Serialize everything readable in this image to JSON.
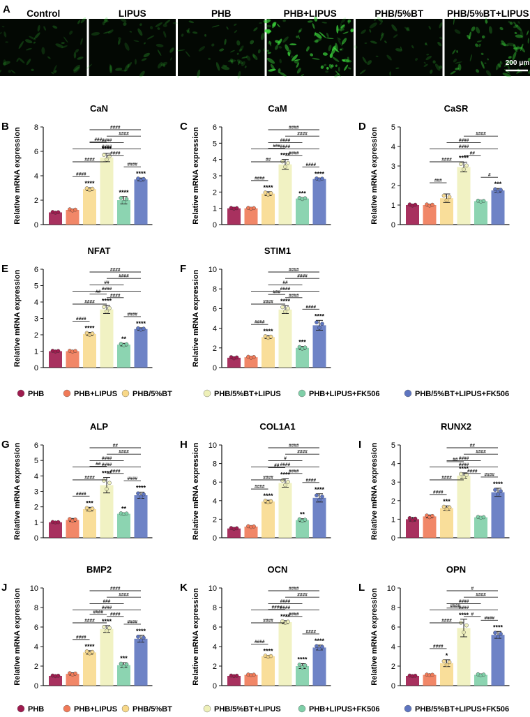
{
  "panel_a": {
    "letter": "A",
    "images": [
      {
        "label": "Control",
        "intensity": 0.08
      },
      {
        "label": "LIPUS",
        "intensity": 0.1
      },
      {
        "label": "PHB",
        "intensity": 0.13
      },
      {
        "label": "PHB+LIPUS",
        "intensity": 0.55
      },
      {
        "label": "PHB/5%BT",
        "intensity": 0.09
      },
      {
        "label": "PHB/5%BT+LIPUS",
        "intensity": 0.3
      }
    ],
    "scale_bar": "200 μm"
  },
  "ylabel": "Relative mRNA expression",
  "legend": {
    "groups": [
      "PHB",
      "PHB+LIPUS",
      "PHB/5%BT",
      "PHB/5%BT+LIPUS",
      "PHB+LIPUS+FK506",
      "PHB/5%BT+LIPUS+FK506"
    ],
    "colors": [
      "#9e1b4e",
      "#f07a58",
      "#f8d888",
      "#eef0b8",
      "#7fcfa8",
      "#5e75c0"
    ]
  },
  "chart_data": [
    {
      "letter": "B",
      "type": "bar",
      "title": "CaN",
      "ylim": [
        0,
        8
      ],
      "ticks": [
        0,
        2,
        4,
        6,
        8
      ],
      "values": [
        1.0,
        1.2,
        2.9,
        5.5,
        2.0,
        3.7
      ],
      "errors": [
        0.05,
        0.08,
        0.12,
        0.35,
        0.3,
        0.12
      ],
      "stars": [
        "",
        "",
        "****",
        "****",
        "****",
        "****"
      ],
      "brackets": [
        "####",
        "####",
        "####",
        "####",
        "####",
        "####",
        "###",
        "####",
        "####"
      ]
    },
    {
      "letter": "C",
      "type": "bar",
      "title": "CaM",
      "ylim": [
        0,
        6
      ],
      "ticks": [
        0,
        1,
        2,
        3,
        4,
        5,
        6
      ],
      "values": [
        1.0,
        1.0,
        1.9,
        3.7,
        1.6,
        2.8
      ],
      "errors": [
        0.04,
        0.05,
        0.12,
        0.3,
        0.06,
        0.06
      ],
      "stars": [
        "",
        "",
        "****",
        "****",
        "***",
        "****"
      ],
      "brackets": [
        "####",
        "####",
        "####",
        "####",
        "####",
        "##",
        "###",
        "####",
        "####"
      ]
    },
    {
      "letter": "D",
      "type": "bar",
      "title": "CaSR",
      "ylim": [
        0,
        5
      ],
      "ticks": [
        0,
        1,
        2,
        3,
        4,
        5
      ],
      "values": [
        1.0,
        1.0,
        1.35,
        2.95,
        1.2,
        1.75
      ],
      "errors": [
        0.05,
        0.05,
        0.22,
        0.25,
        0.04,
        0.1
      ],
      "stars": [
        "",
        "",
        "",
        "****",
        "",
        "***"
      ],
      "brackets": [
        "",
        "####",
        "####",
        "####",
        "##",
        "####",
        "#",
        "###"
      ]
    },
    {
      "letter": "E",
      "type": "bar",
      "title": "NFAT",
      "ylim": [
        0,
        6
      ],
      "ticks": [
        0,
        1,
        2,
        3,
        4,
        5,
        6
      ],
      "values": [
        1.0,
        1.0,
        2.05,
        3.55,
        1.4,
        2.35
      ],
      "errors": [
        0.04,
        0.04,
        0.1,
        0.25,
        0.08,
        0.08
      ],
      "stars": [
        "",
        "",
        "****",
        "****",
        "**",
        "****"
      ],
      "brackets": [
        "####",
        "####",
        "##",
        "####",
        "####",
        "####",
        "##",
        "####",
        "####"
      ]
    },
    {
      "letter": "F",
      "type": "bar",
      "title": "STIM1",
      "ylim": [
        0,
        10
      ],
      "ticks": [
        0,
        2,
        4,
        6,
        8,
        10
      ],
      "values": [
        1.0,
        1.05,
        3.1,
        5.9,
        2.0,
        4.3
      ],
      "errors": [
        0.1,
        0.08,
        0.15,
        0.4,
        0.15,
        0.5
      ],
      "stars": [
        "",
        "",
        "****",
        "****",
        "***",
        "****"
      ],
      "brackets": [
        "####",
        "####",
        "##",
        "####",
        "####",
        "####",
        "###",
        "####",
        "####"
      ]
    },
    {
      "letter": "G",
      "type": "bar",
      "title": "ALP",
      "ylim": [
        0,
        6
      ],
      "ticks": [
        0,
        1,
        2,
        3,
        4,
        5,
        6
      ],
      "values": [
        1.0,
        1.15,
        1.85,
        3.4,
        1.55,
        2.75
      ],
      "errors": [
        0.03,
        0.1,
        0.12,
        0.5,
        0.05,
        0.2
      ],
      "stars": [
        "",
        "",
        "***",
        "****",
        "**",
        "****"
      ],
      "brackets": [
        "##",
        "####",
        "####",
        "####",
        "####",
        "####",
        "##",
        "####",
        "####"
      ]
    },
    {
      "letter": "H",
      "type": "bar",
      "title": "COL1A1",
      "ylim": [
        0,
        10
      ],
      "ticks": [
        0,
        2,
        4,
        6,
        8,
        10
      ],
      "values": [
        1.0,
        1.2,
        3.9,
        5.9,
        1.9,
        4.3
      ],
      "errors": [
        0.08,
        0.08,
        0.15,
        0.45,
        0.15,
        0.45
      ],
      "stars": [
        "",
        "",
        "****",
        "****",
        "**",
        "****"
      ],
      "brackets": [
        "####",
        "####",
        "#",
        "####",
        "####",
        "####",
        "##",
        "####",
        "####"
      ]
    },
    {
      "letter": "I",
      "type": "bar",
      "title": "RUNX2",
      "ylim": [
        0,
        5
      ],
      "ticks": [
        0,
        1,
        2,
        3,
        4,
        5
      ],
      "values": [
        1.0,
        1.15,
        1.6,
        3.35,
        1.1,
        2.45
      ],
      "errors": [
        0.1,
        0.08,
        0.12,
        0.15,
        0.04,
        0.22
      ],
      "stars": [
        "",
        "",
        "***",
        "****",
        "",
        "****"
      ],
      "brackets": [
        "##",
        "####",
        "####",
        "####",
        "####",
        "####",
        "##",
        "####",
        "####"
      ]
    },
    {
      "letter": "J",
      "type": "bar",
      "title": "BMP2",
      "ylim": [
        0,
        10
      ],
      "ticks": [
        0,
        2,
        4,
        6,
        8,
        10
      ],
      "values": [
        1.0,
        1.2,
        3.4,
        5.8,
        2.1,
        4.8
      ],
      "errors": [
        0.05,
        0.12,
        0.18,
        0.35,
        0.25,
        0.35
      ],
      "stars": [
        "",
        "",
        "****",
        "****",
        "***",
        "****"
      ],
      "brackets": [
        "####",
        "####",
        "###",
        "####",
        "####",
        "####",
        "####",
        "####",
        "####"
      ]
    },
    {
      "letter": "K",
      "type": "bar",
      "title": "OCN",
      "ylim": [
        0,
        10
      ],
      "ticks": [
        0,
        2,
        4,
        6,
        8,
        10
      ],
      "values": [
        1.0,
        1.1,
        3.0,
        6.5,
        2.0,
        3.9
      ],
      "errors": [
        0.05,
        0.06,
        0.1,
        0.15,
        0.25,
        0.25
      ],
      "stars": [
        "",
        "",
        "****",
        "****",
        "****",
        "****"
      ],
      "brackets": [
        "####",
        "####",
        "####",
        "####",
        "####",
        "####",
        "####",
        "####",
        "####"
      ]
    },
    {
      "letter": "L",
      "type": "bar",
      "title": "OPN",
      "ylim": [
        0,
        10
      ],
      "ticks": [
        0,
        2,
        4,
        6,
        8,
        10
      ],
      "values": [
        1.0,
        1.1,
        2.3,
        5.9,
        1.1,
        5.2
      ],
      "errors": [
        0.05,
        0.05,
        0.35,
        0.9,
        0.1,
        0.35
      ],
      "stars": [
        "",
        "",
        "*",
        "****",
        "",
        "****"
      ],
      "brackets": [
        "#",
        "####",
        "####",
        "####",
        "#",
        "####",
        "####",
        "####",
        "####"
      ]
    }
  ]
}
